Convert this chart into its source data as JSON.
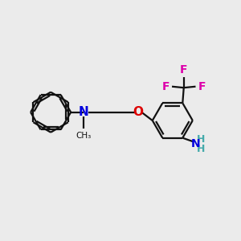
{
  "bg_color": "#ebebeb",
  "bond_color": "#111111",
  "N_color": "#0000dd",
  "O_color": "#dd0000",
  "F_color": "#dd00aa",
  "NH2_color": "#44aaaa",
  "NH2_N_color": "#0000dd",
  "line_width": 1.6,
  "figsize": [
    3.0,
    3.0
  ],
  "dpi": 100,
  "xlim": [
    0,
    10
  ],
  "ylim": [
    0,
    10
  ]
}
